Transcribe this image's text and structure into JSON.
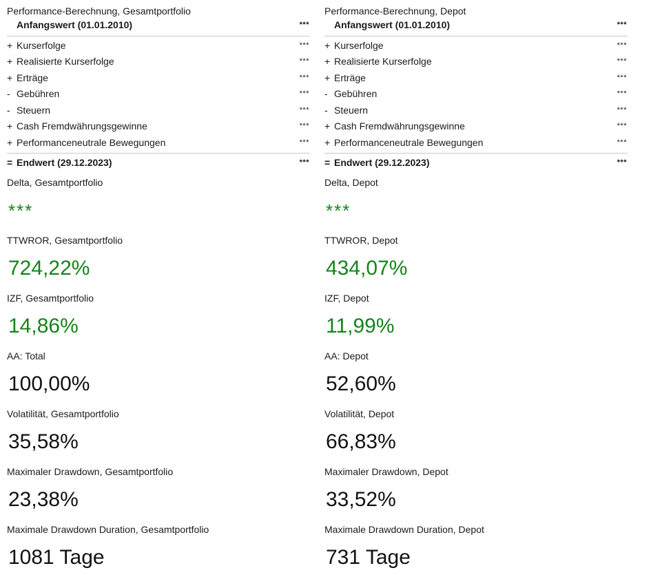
{
  "left": {
    "title": "Performance-Berechnung, Gesamtportfolio",
    "start": {
      "label": "Anfangswert (01.01.2010)",
      "value": "***"
    },
    "rows": [
      {
        "op": "+",
        "label": "Kurserfolge",
        "value": "***"
      },
      {
        "op": "+",
        "label": "Realisierte Kurserfolge",
        "value": "***"
      },
      {
        "op": "+",
        "label": "Erträge",
        "value": "***"
      },
      {
        "op": "-",
        "label": "Gebühren",
        "value": "***"
      },
      {
        "op": "-",
        "label": "Steuern",
        "value": "***"
      },
      {
        "op": "+",
        "label": "Cash Fremdwährungsgewinne",
        "value": "***"
      },
      {
        "op": "+",
        "label": "Performanceneutrale Bewegungen",
        "value": "***"
      }
    ],
    "end": {
      "op": "=",
      "label": "Endwert (29.12.2023)",
      "value": "***"
    },
    "kpis": [
      {
        "label": "Delta, Gesamtportfolio",
        "value": "***"
      },
      {
        "label": "TTWROR, Gesamtportfolio",
        "value": "724,22%"
      },
      {
        "label": "IZF, Gesamtportfolio",
        "value": "14,86%"
      },
      {
        "label": "AA: Total",
        "value": "100,00%"
      },
      {
        "label": "Volatilität, Gesamtportfolio",
        "value": "35,58%"
      },
      {
        "label": "Maximaler Drawdown, Gesamtportfolio",
        "value": "23,38%"
      },
      {
        "label": "Maximale Drawdown Duration, Gesamtportfolio",
        "value": "1081 Tage"
      }
    ]
  },
  "right": {
    "title": "Performance-Berechnung, Depot",
    "start": {
      "label": "Anfangswert (01.01.2010)",
      "value": "***"
    },
    "rows": [
      {
        "op": "+",
        "label": "Kurserfolge",
        "value": "***"
      },
      {
        "op": "+",
        "label": "Realisierte Kurserfolge",
        "value": "***"
      },
      {
        "op": "+",
        "label": "Erträge",
        "value": "***"
      },
      {
        "op": "-",
        "label": "Gebühren",
        "value": "***"
      },
      {
        "op": "-",
        "label": "Steuern",
        "value": "***"
      },
      {
        "op": "+",
        "label": "Cash Fremdwährungsgewinne",
        "value": "***"
      },
      {
        "op": "+",
        "label": "Performanceneutrale Bewegungen",
        "value": "***"
      }
    ],
    "end": {
      "op": "=",
      "label": "Endwert (29.12.2023)",
      "value": "***"
    },
    "kpis": [
      {
        "label": "Delta, Depot",
        "value": "***"
      },
      {
        "label": "TTWROR, Depot",
        "value": "434,07%"
      },
      {
        "label": "IZF, Depot",
        "value": "11,99%"
      },
      {
        "label": "AA: Depot",
        "value": "52,60%"
      },
      {
        "label": "Volatilität, Depot",
        "value": "66,83%"
      },
      {
        "label": "Maximaler Drawdown, Depot",
        "value": "33,52%"
      },
      {
        "label": "Maximale Drawdown Duration, Depot",
        "value": "731 Tage"
      }
    ]
  },
  "colors": {
    "positive": "#14841a",
    "neutral": "#111111",
    "divider": "#c8c8c8"
  }
}
